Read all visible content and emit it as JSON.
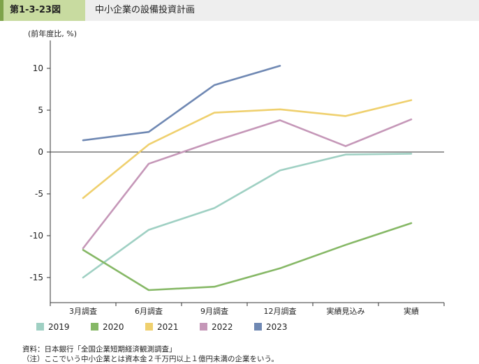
{
  "figure": {
    "number": "第1-3-23図",
    "title": "中小企業の設備投資計画"
  },
  "notes": [
    "資料：日本銀行「全国企業短期経済観測調査」",
    "（注）ここでいう中小企業とは資本金２千万円以上１億円未満の企業をいう。"
  ],
  "chart_data": {
    "type": "line",
    "title": "中小企業の設備投資計画",
    "ylabel": "(前年度比, %)",
    "xlabel": "",
    "categories": [
      "3月調査",
      "6月調査",
      "9月調査",
      "12月調査",
      "実績見込み",
      "実績"
    ],
    "ylim": [
      -18,
      13
    ],
    "yticks": [
      10,
      5,
      0,
      -5,
      -10,
      -15
    ],
    "ytick_labels": [
      "10",
      "5",
      "0",
      "-5",
      "-10",
      "-15"
    ],
    "legend_position": "bottom",
    "series": [
      {
        "name": "2019",
        "color": "#9fd0c3",
        "values": [
          -15.0,
          -9.3,
          -6.7,
          -2.2,
          -0.3,
          -0.2
        ]
      },
      {
        "name": "2020",
        "color": "#86b866",
        "values": [
          -11.7,
          -16.5,
          -16.1,
          -13.9,
          -11.1,
          -8.5
        ]
      },
      {
        "name": "2021",
        "color": "#efd06e",
        "values": [
          -5.5,
          0.9,
          4.7,
          5.1,
          4.3,
          6.2
        ]
      },
      {
        "name": "2022",
        "color": "#c597b8",
        "values": [
          -11.5,
          -1.4,
          1.3,
          3.8,
          0.7,
          3.9
        ]
      },
      {
        "name": "2023",
        "color": "#6f88b3",
        "values": [
          1.4,
          2.4,
          8.0,
          10.3,
          null,
          null
        ]
      }
    ]
  }
}
